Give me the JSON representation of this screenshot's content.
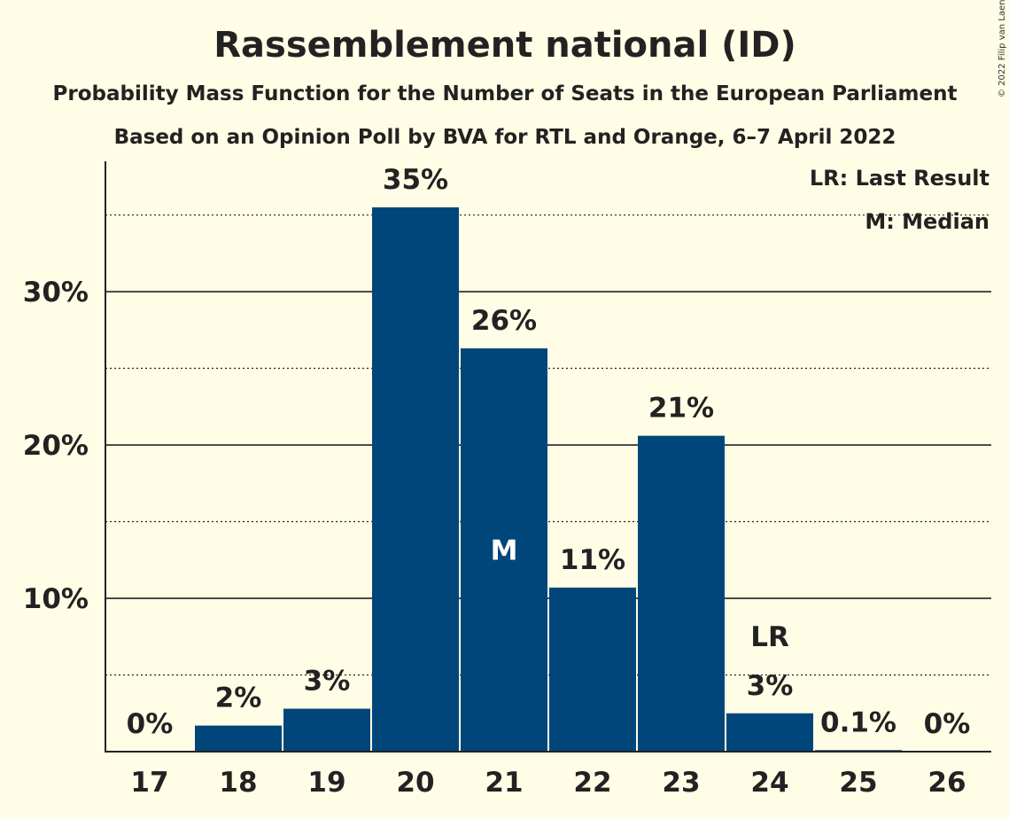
{
  "chart_data": {
    "type": "bar",
    "title": "Rassemblement national (ID)",
    "subtitle": "Probability Mass Function for the Number of Seats in the European Parliament",
    "subtitle2": "Based on an Opinion Poll by BVA for RTL and Orange, 6–7 April 2022",
    "copyright": "© 2022 Filip van Laenen",
    "categories": [
      "17",
      "18",
      "19",
      "20",
      "21",
      "22",
      "23",
      "24",
      "25",
      "26"
    ],
    "values": [
      0,
      1.7,
      2.8,
      35.5,
      26.3,
      10.7,
      20.6,
      2.5,
      0.1,
      0
    ],
    "data_labels": [
      "0%",
      "2%",
      "3%",
      "35%",
      "26%",
      "11%",
      "21%",
      "3%",
      "0.1%",
      "0%"
    ],
    "ylim": [
      0,
      38.5
    ],
    "yticks": [
      {
        "value": 10,
        "label": "10%"
      },
      {
        "value": 20,
        "label": "20%"
      },
      {
        "value": 30,
        "label": "30%"
      }
    ],
    "minor_gridlines": [
      5,
      15,
      25,
      35
    ],
    "bar_color": "#00467a",
    "median_category": "21",
    "median_marker": "M",
    "last_result_category": "24",
    "last_result_marker": "LR",
    "legend": {
      "position": "top-right",
      "items": [
        "LR: Last Result",
        "M: Median"
      ]
    }
  }
}
